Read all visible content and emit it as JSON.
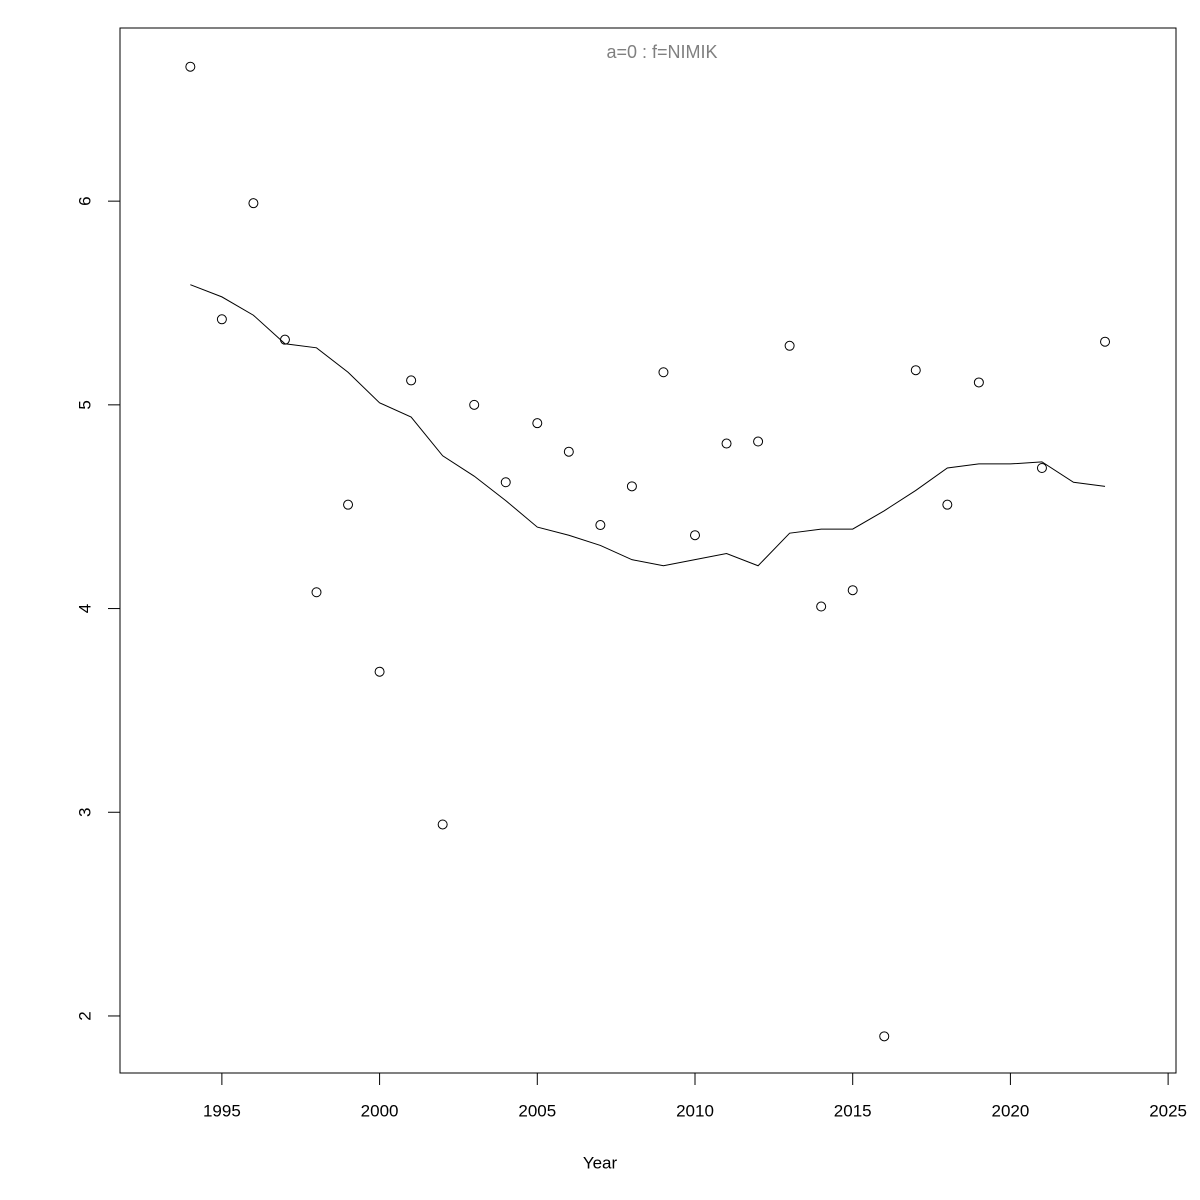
{
  "chart_data": {
    "type": "scatter",
    "title": "a=0  :  f=NIMIK",
    "x_label": "Year",
    "x": [
      1994,
      1995,
      1996,
      1997,
      1998,
      1999,
      2000,
      2001,
      2002,
      2003,
      2004,
      2005,
      2006,
      2007,
      2008,
      2009,
      2010,
      2011,
      2012,
      2013,
      2014,
      2015,
      2016,
      2017,
      2018,
      2019,
      2020,
      2021,
      2022,
      2023
    ],
    "series": [
      {
        "style": "points",
        "color": "#000000",
        "values": [
          6.66,
          5.42,
          5.99,
          5.32,
          4.08,
          4.51,
          3.69,
          5.12,
          2.94,
          5.0,
          4.62,
          4.91,
          4.77,
          4.41,
          4.6,
          5.16,
          4.36,
          4.81,
          4.82,
          5.29,
          4.01,
          4.09,
          1.9,
          5.17,
          4.51,
          5.11,
          null,
          4.69,
          null,
          5.31
        ]
      },
      {
        "style": "line",
        "color": "#000000",
        "values": [
          5.59,
          5.53,
          5.44,
          5.3,
          5.28,
          5.16,
          5.01,
          4.94,
          4.75,
          4.65,
          4.53,
          4.4,
          4.36,
          4.31,
          4.24,
          4.21,
          4.24,
          4.27,
          4.21,
          4.37,
          4.39,
          4.39,
          4.48,
          4.58,
          4.69,
          4.71,
          4.71,
          4.72,
          4.62,
          4.6
        ]
      }
    ],
    "xlim": [
      1991.77,
      2025.25
    ],
    "ylim": [
      1.72,
      6.85
    ],
    "xticks": [
      1995,
      2000,
      2005,
      2010,
      2015,
      2020,
      2025
    ],
    "yticks": [
      2,
      3,
      4,
      5,
      6
    ]
  }
}
